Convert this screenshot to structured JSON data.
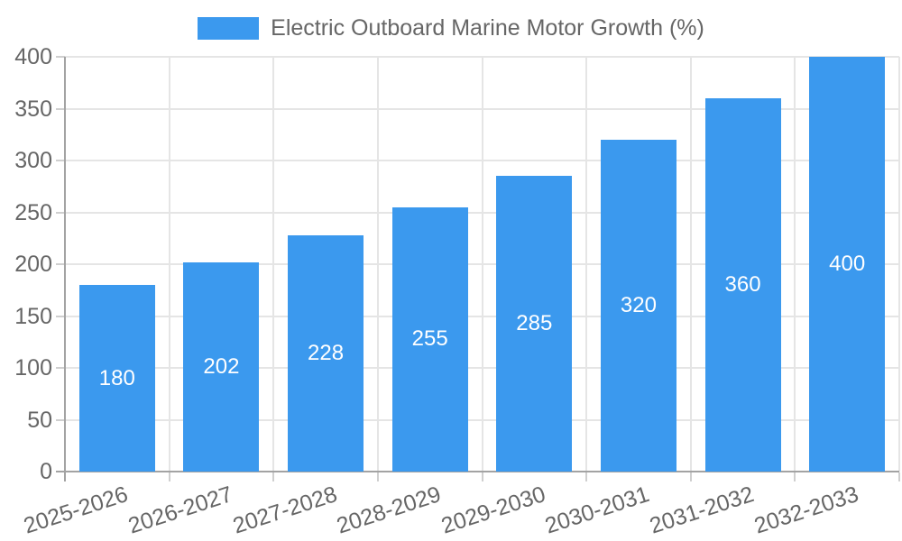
{
  "chart_data": {
    "type": "bar",
    "title": "Electric Outboard Marine Motor Growth (%)",
    "legend": {
      "label": "Electric Outboard Marine Motor Growth (%)",
      "position": "top"
    },
    "categories": [
      "2025-2026",
      "2026-2027",
      "2027-2028",
      "2028-2029",
      "2029-2030",
      "2030-2031",
      "2031-2032",
      "2032-2033"
    ],
    "series": [
      {
        "name": "Electric Outboard Marine Motor Growth (%)",
        "values": [
          180,
          202,
          228,
          255,
          285,
          320,
          360,
          400
        ]
      }
    ],
    "bar_labels": [
      "180",
      "202",
      "228",
      "255",
      "285",
      "320",
      "360",
      "400"
    ],
    "xlabel": "",
    "ylabel": "",
    "ylim": [
      0,
      400
    ],
    "yticks": [
      0,
      50,
      100,
      150,
      200,
      250,
      300,
      350,
      400
    ],
    "ytick_labels": [
      "0",
      "50",
      "100",
      "150",
      "200",
      "250",
      "300",
      "350",
      "400"
    ],
    "grid": "horizontal and vertical, light gray",
    "colors": {
      "bar": "#3B99EE",
      "bar_label_text": "#FFFFFF",
      "tick_text": "#666666",
      "legend_text": "#666666",
      "gridline": "#E5E5E5",
      "axis_line": "#A3A3A3",
      "tick_mark": "#CFCFCF",
      "background": "#FFFFFF"
    }
  }
}
